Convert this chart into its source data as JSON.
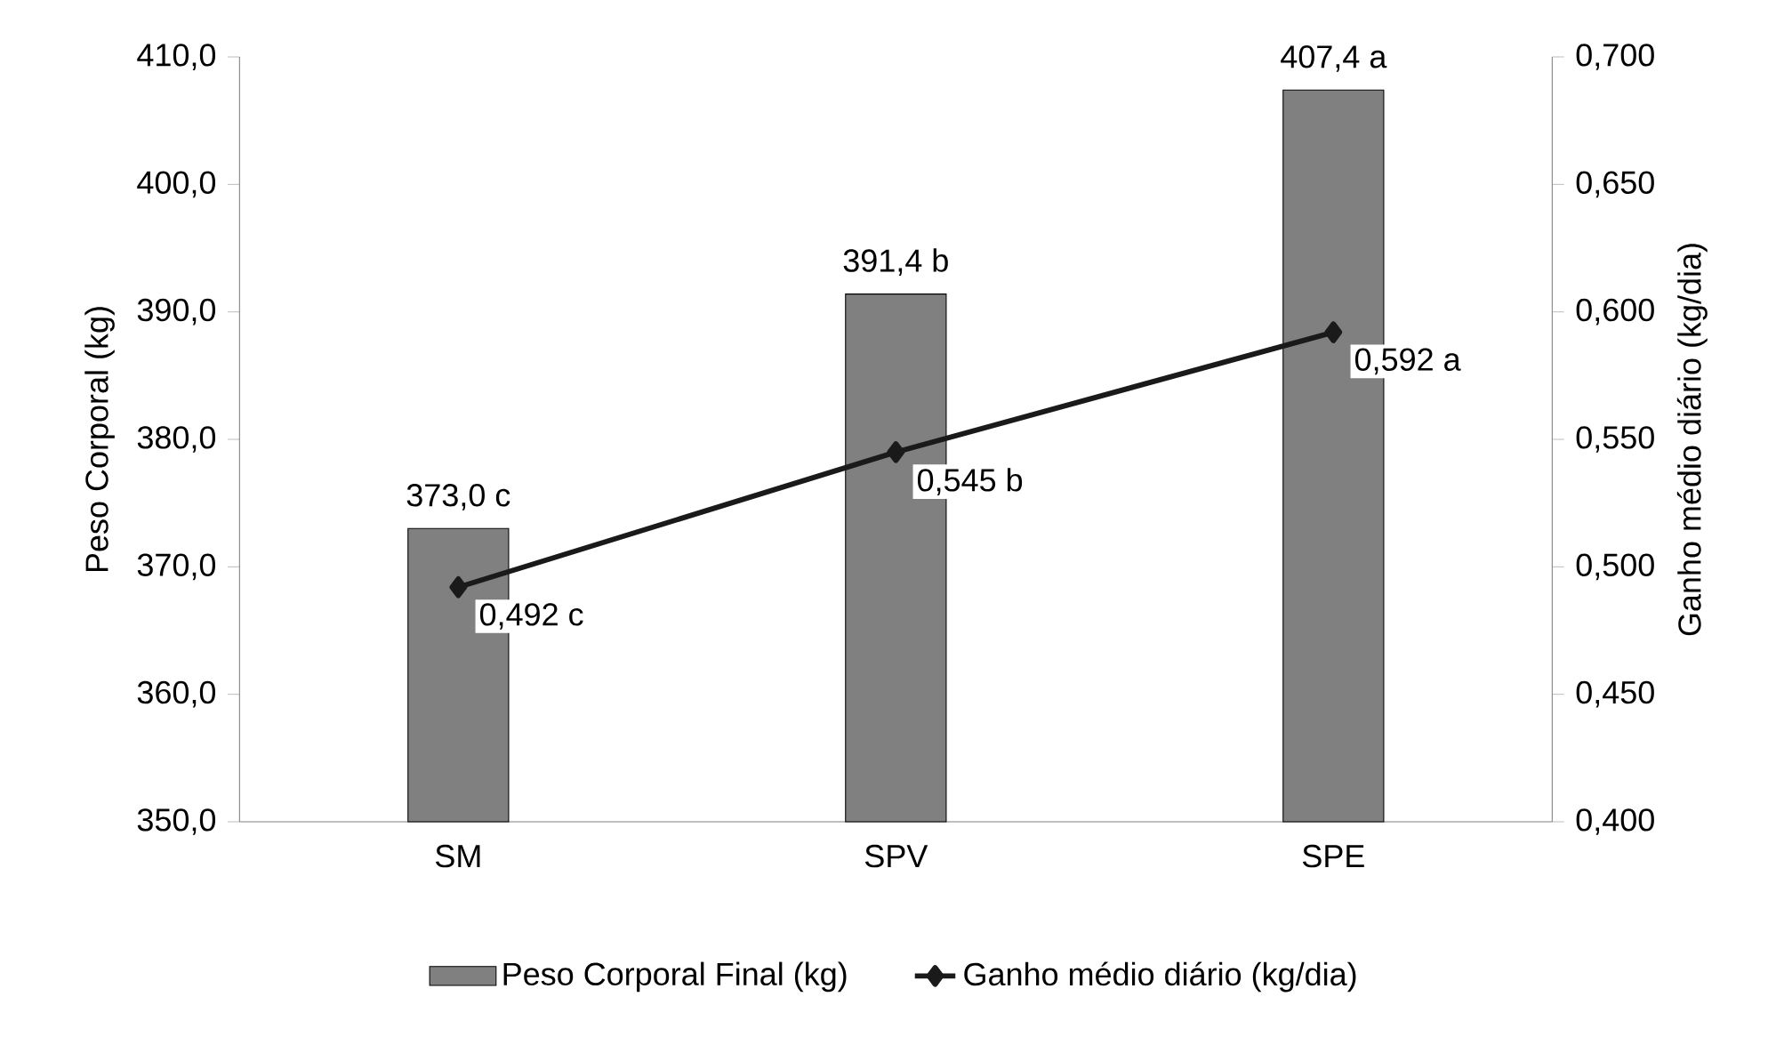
{
  "chart_data": {
    "type": "bar",
    "categories": [
      "SM",
      "SPV",
      "SPE"
    ],
    "ylabel": "Peso Corporal (kg)",
    "y2label": "Ganho médio diário (kg/dia)",
    "ylim": [
      350,
      410
    ],
    "yticks": [
      {
        "value": 350,
        "label": "350,0"
      },
      {
        "value": 360,
        "label": "360,0"
      },
      {
        "value": 370,
        "label": "370,0"
      },
      {
        "value": 380,
        "label": "380,0"
      },
      {
        "value": 390,
        "label": "390,0"
      },
      {
        "value": 400,
        "label": "400,0"
      },
      {
        "value": 410,
        "label": "410,0"
      }
    ],
    "y2lim": [
      0.4,
      0.7
    ],
    "y2ticks": [
      {
        "value": 0.4,
        "label": "0,400"
      },
      {
        "value": 0.45,
        "label": "0,450"
      },
      {
        "value": 0.5,
        "label": "0,500"
      },
      {
        "value": 0.55,
        "label": "0,550"
      },
      {
        "value": 0.6,
        "label": "0,600"
      },
      {
        "value": 0.65,
        "label": "0,650"
      },
      {
        "value": 0.7,
        "label": "0,700"
      }
    ],
    "legend": "bottom",
    "grid": false,
    "series": [
      {
        "name": "Peso Corporal Final (kg)",
        "color": "#808080",
        "values": [
          373.0,
          391.4,
          407.4
        ],
        "value_labels": [
          "373,0 c",
          "391,4 b",
          "407,4 a"
        ]
      },
      {
        "name": "Ganho médio diário (kg/dia)",
        "type": "line",
        "axis": "y2",
        "color": "#1a1a1a",
        "marker": "diamond",
        "values": [
          0.492,
          0.545,
          0.592
        ],
        "value_labels": [
          "0,492 c",
          "0,545 b",
          "0,592 a"
        ]
      }
    ]
  }
}
